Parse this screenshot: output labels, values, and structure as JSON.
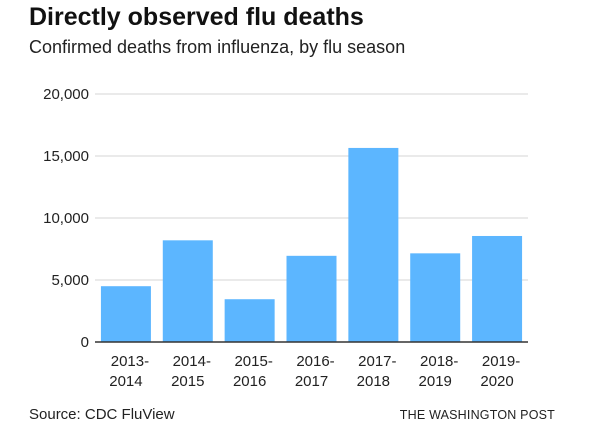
{
  "header": {
    "title": "Directly observed flu deaths",
    "subtitle": "Confirmed deaths from influenza, by flu season"
  },
  "footer": {
    "source": "Source: CDC FluView",
    "credit": "THE WASHINGTON POST"
  },
  "colors": {
    "bar": "#5cb6ff",
    "grid": "#d6d6d6",
    "baseline": "#333333"
  },
  "chart_data": {
    "type": "bar",
    "title": "Directly observed flu deaths",
    "subtitle": "Confirmed deaths from influenza, by flu season",
    "xlabel": "",
    "ylabel": "",
    "categories": [
      [
        "2013-",
        "2014"
      ],
      [
        "2014-",
        "2015"
      ],
      [
        "2015-",
        "2016"
      ],
      [
        "2016-",
        "2017"
      ],
      [
        "2017-",
        "2018"
      ],
      [
        "2018-",
        "2019"
      ],
      [
        "2019-",
        "2020"
      ]
    ],
    "values": [
      4500,
      8200,
      3450,
      6950,
      15650,
      7150,
      8550
    ],
    "ylim": [
      0,
      20000
    ],
    "yticks": [
      0,
      5000,
      10000,
      15000,
      20000
    ],
    "ytick_labels": [
      "0",
      "5,000",
      "10,000",
      "15,000",
      "20,000"
    ],
    "grid": true,
    "legend": "none"
  }
}
